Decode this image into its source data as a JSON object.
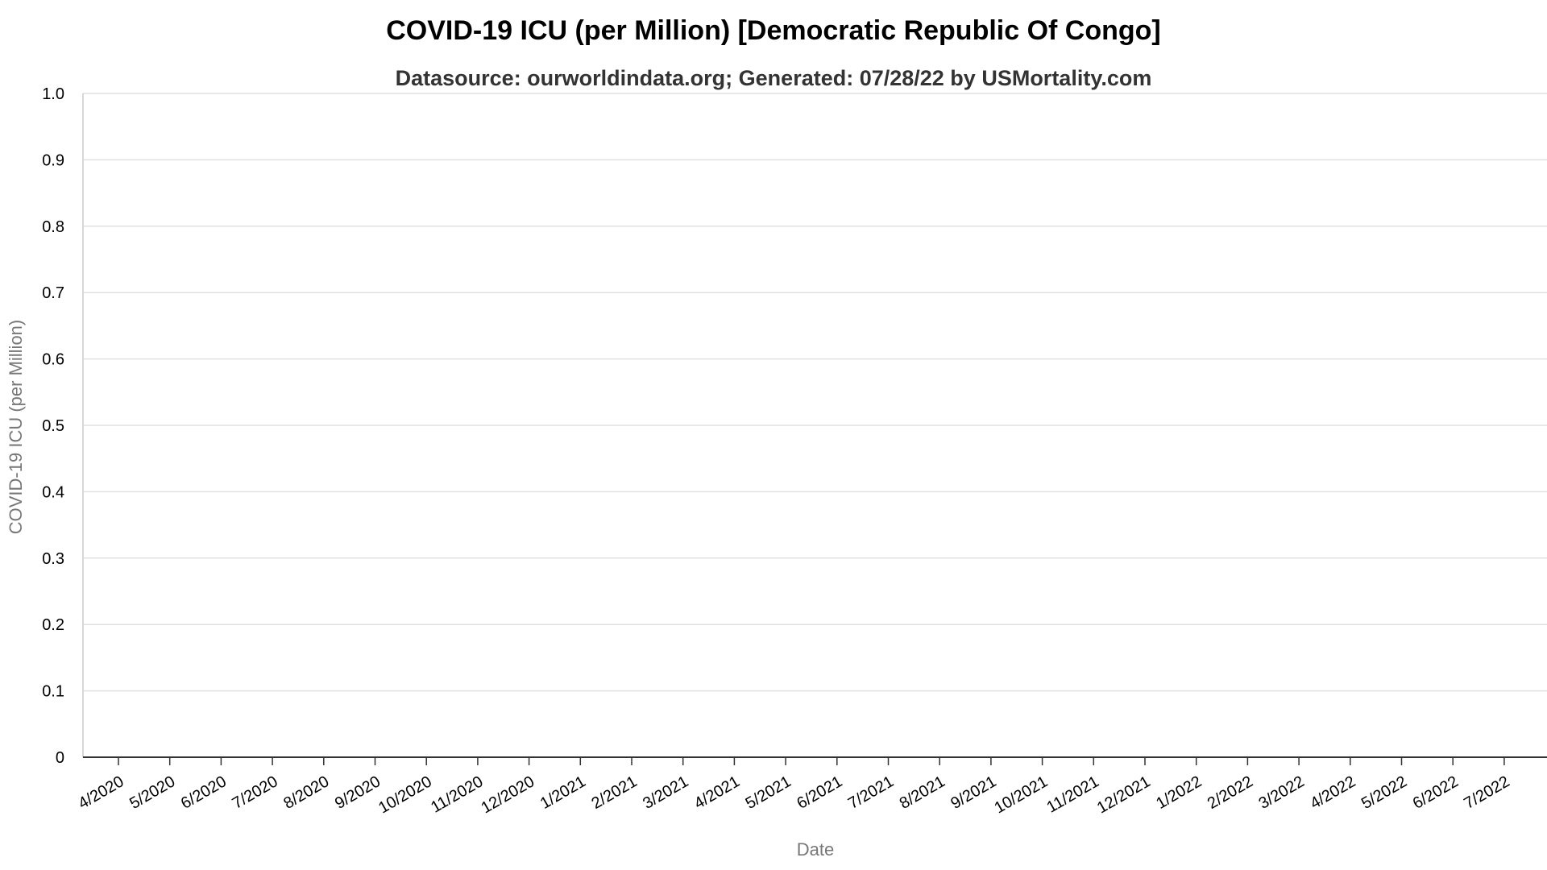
{
  "chart_data": {
    "type": "line",
    "title": "COVID-19 ICU (per Million) [Democratic Republic Of Congo]",
    "subtitle": "Datasource: ourworldindata.org; Generated: 07/28/22 by USMortality.com",
    "xlabel": "Date",
    "ylabel": "COVID-19 ICU (per Million)",
    "ylim": [
      0,
      1
    ],
    "yticks": [
      "0",
      "0.1",
      "0.2",
      "0.3",
      "0.4",
      "0.5",
      "0.6",
      "0.7",
      "0.8",
      "0.9",
      "1.0"
    ],
    "xticks": [
      "4/2020",
      "5/2020",
      "6/2020",
      "7/2020",
      "8/2020",
      "9/2020",
      "10/2020",
      "11/2020",
      "12/2020",
      "1/2021",
      "2/2021",
      "3/2021",
      "4/2021",
      "5/2021",
      "6/2021",
      "7/2021",
      "8/2021",
      "9/2021",
      "10/2021",
      "11/2021",
      "12/2021",
      "1/2022",
      "2/2022",
      "3/2022",
      "4/2022",
      "5/2022",
      "6/2022",
      "7/2022"
    ],
    "series": [],
    "grid": true,
    "legend": "none"
  }
}
